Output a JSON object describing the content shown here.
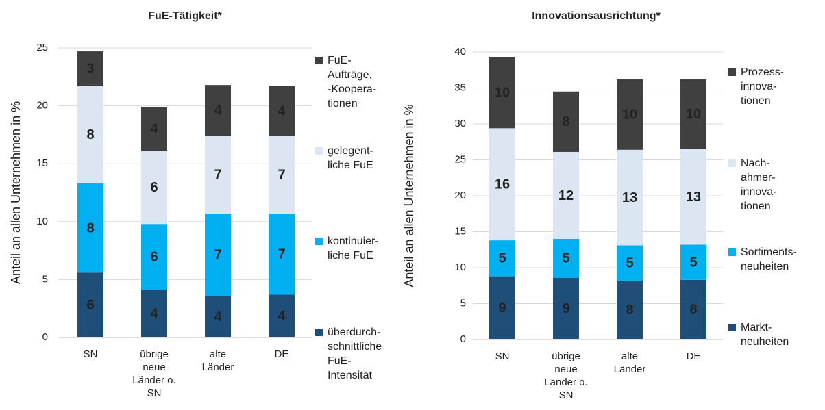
{
  "chart_data": [
    {
      "type": "bar",
      "stacked": true,
      "title": "FuE-Tätigkeit*",
      "y_label": "Anteil an allen Unternehmen in %",
      "categories": [
        "SN",
        "übrige\nneue\nLänder o.\nSN",
        "alte\nLänder",
        "DE"
      ],
      "ylim": [
        0,
        25
      ],
      "yticks": [
        0,
        5,
        10,
        15,
        20,
        25
      ],
      "grid": true,
      "series": [
        {
          "name": "überdurch-\nschnittliche\nFuE-\nIntensität",
          "color": "#1f4e79",
          "values": [
            5.6,
            4.1,
            3.6,
            3.7
          ],
          "value_labels": [
            "6",
            "4",
            "4",
            "4"
          ]
        },
        {
          "name": "kontinuier-\nliche FuE",
          "color": "#00b0f0",
          "values": [
            7.7,
            5.7,
            7.1,
            7.0
          ],
          "value_labels": [
            "8",
            "6",
            "7",
            "7"
          ]
        },
        {
          "name": "gelegent-\nliche FuE",
          "color": "#dce6f2",
          "values": [
            8.4,
            6.3,
            6.7,
            6.7
          ],
          "value_labels": [
            "8",
            "6",
            "7",
            "7"
          ]
        },
        {
          "name": "FuE-\nAufträge,\n-Koopera-\ntionen",
          "color": "#404040",
          "values": [
            3.0,
            3.8,
            4.4,
            4.3
          ],
          "value_labels": [
            "3",
            "4",
            "4",
            "4"
          ]
        }
      ]
    },
    {
      "type": "bar",
      "stacked": true,
      "title": "Innovationsausrichtung*",
      "y_label": "Anteil an allen Unternehmen in %",
      "categories": [
        "SN",
        "übrige\nneue\nLänder o.\nSN",
        "alte\nLänder",
        "DE"
      ],
      "ylim": [
        0,
        40
      ],
      "yticks": [
        0,
        5,
        10,
        15,
        20,
        25,
        30,
        35,
        40
      ],
      "grid": true,
      "series": [
        {
          "name": "Markt-\nneuheiten",
          "color": "#1f4e79",
          "values": [
            8.8,
            8.6,
            8.2,
            8.3
          ],
          "value_labels": [
            "9",
            "9",
            "8",
            "8"
          ]
        },
        {
          "name": "Sortiments-\nneuheiten",
          "color": "#00b0f0",
          "values": [
            5.0,
            5.4,
            4.9,
            4.9
          ],
          "value_labels": [
            "5",
            "5",
            "5",
            "5"
          ]
        },
        {
          "name": "Nach-\nahmer-\ninnova-\ntionen",
          "color": "#dce6f2",
          "values": [
            15.6,
            12.1,
            13.3,
            13.3
          ],
          "value_labels": [
            "16",
            "12",
            "13",
            "13"
          ]
        },
        {
          "name": "Prozess-\ninnova-\ntionen",
          "color": "#404040",
          "values": [
            9.9,
            8.4,
            9.8,
            9.7
          ],
          "value_labels": [
            "10",
            "8",
            "10",
            "10"
          ]
        }
      ]
    }
  ]
}
